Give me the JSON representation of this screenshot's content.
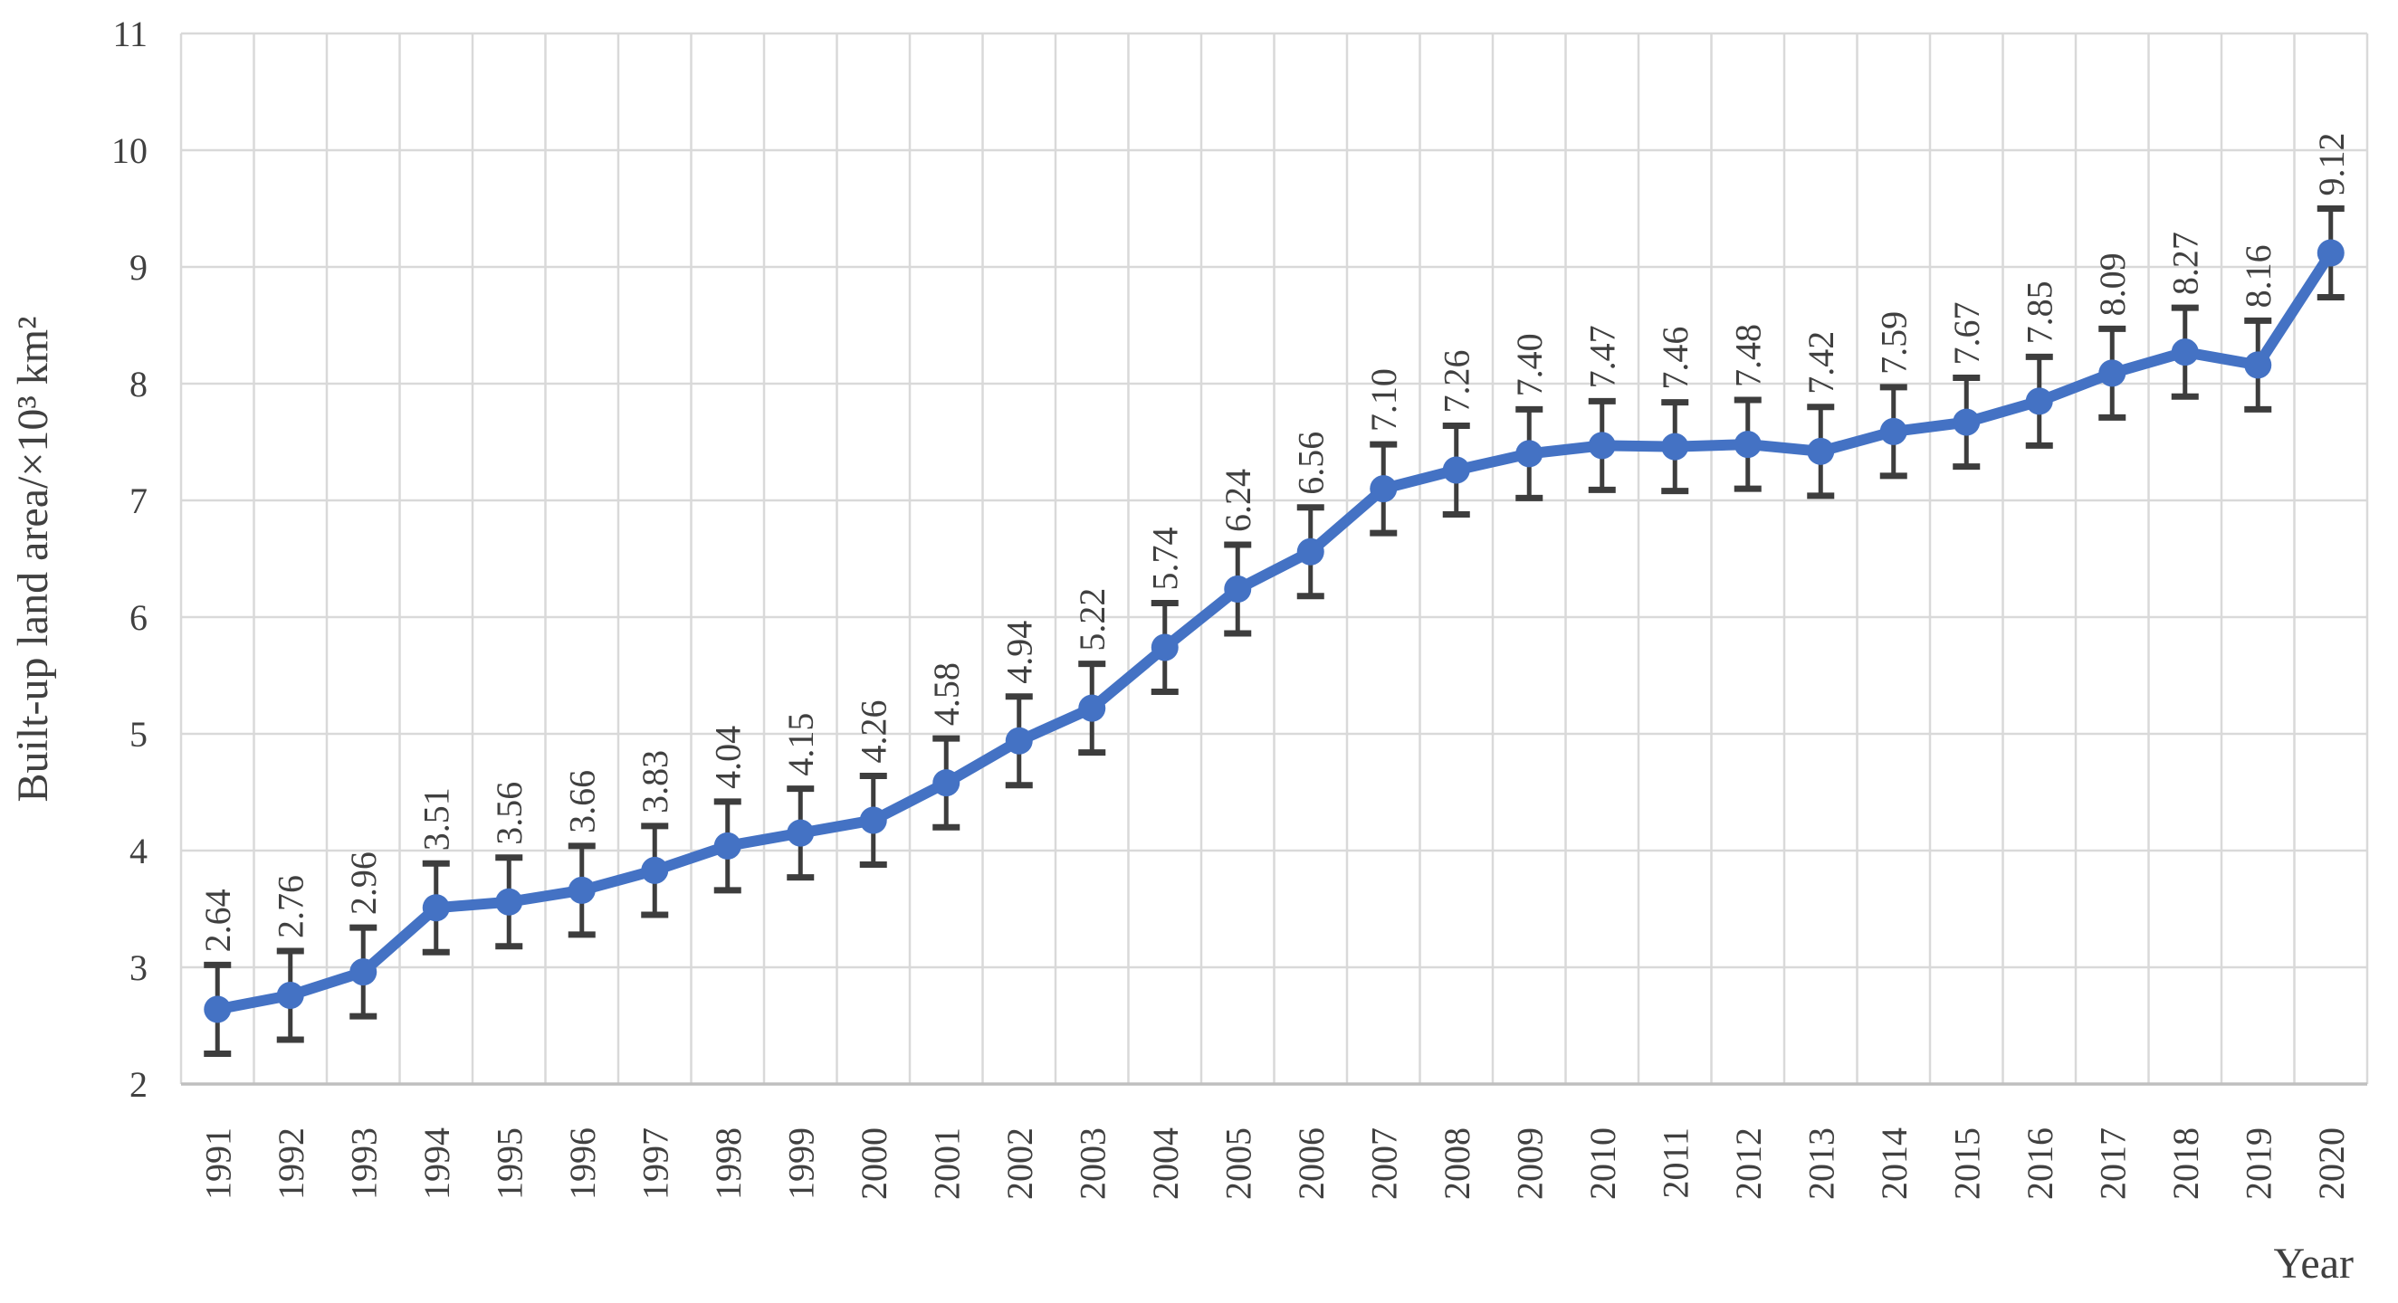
{
  "page": {
    "background": "#FFFFFF"
  },
  "chart_data": {
    "type": "line",
    "title": "",
    "xlabel": "Year",
    "ylabel": "Built-up land area/×10³ km²",
    "x": [
      "1991",
      "1992",
      "1993",
      "1994",
      "1995",
      "1996",
      "1997",
      "1998",
      "1999",
      "2000",
      "2001",
      "2002",
      "2003",
      "2004",
      "2005",
      "2006",
      "2007",
      "2008",
      "2009",
      "2010",
      "2011",
      "2012",
      "2013",
      "2014",
      "2015",
      "2016",
      "2017",
      "2018",
      "2019",
      "2020"
    ],
    "series": [
      {
        "name": "Built-up land area",
        "values": [
          2.64,
          2.76,
          2.96,
          3.51,
          3.56,
          3.66,
          3.83,
          4.04,
          4.15,
          4.26,
          4.58,
          4.94,
          5.22,
          5.74,
          6.24,
          6.56,
          7.1,
          7.26,
          7.4,
          7.47,
          7.46,
          7.48,
          7.42,
          7.59,
          7.67,
          7.85,
          8.09,
          8.27,
          8.16,
          9.12
        ],
        "labels": [
          "2.64",
          "2.76",
          "2.96",
          "3.51",
          "3.56",
          "3.66",
          "3.83",
          "4.04",
          "4.15",
          "4.26",
          "4.58",
          "4.94",
          "5.22",
          "5.74",
          "6.24",
          "6.56",
          "7.10",
          "7.26",
          "7.40",
          "7.47",
          "7.46",
          "7.48",
          "7.42",
          "7.59",
          "7.67",
          "7.85",
          "8.09",
          "8.27",
          "8.16",
          "9.12"
        ]
      }
    ],
    "error_bar_plus_minus": 0.38,
    "ylim": [
      2,
      11
    ],
    "ytick_interval": 1,
    "yticks": [
      "2",
      "3",
      "4",
      "5",
      "6",
      "7",
      "8",
      "9",
      "10",
      "11"
    ],
    "grid": "both",
    "legend_position": "none",
    "label_rotation_degrees": 90,
    "colors": {
      "line": "#4472C4",
      "marker": "#4472C4",
      "error_bar": "#3D3D3D",
      "grid": "#D9D9D9",
      "axis_line": "#BFBFBF",
      "text": "#404040",
      "background": "#FFFFFF"
    }
  }
}
